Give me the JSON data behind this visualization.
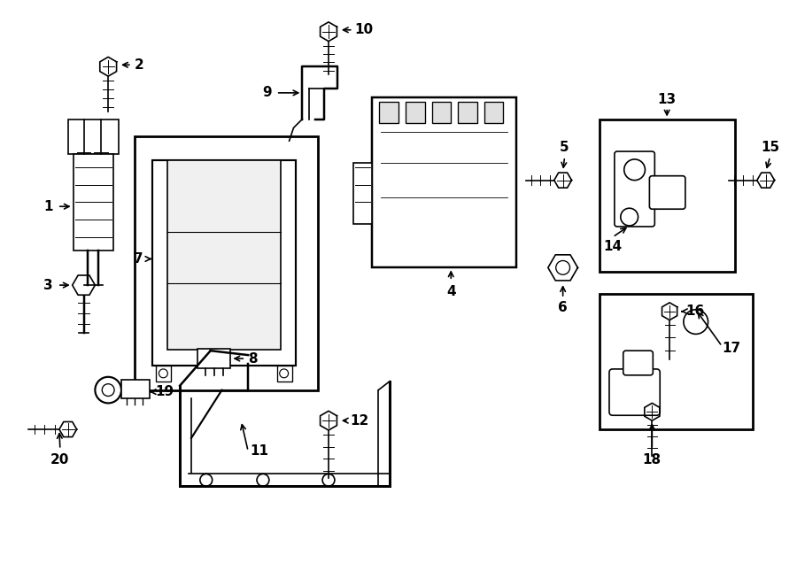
{
  "bg_color": "#ffffff",
  "line_color": "#000000",
  "fig_width": 9.0,
  "fig_height": 6.62,
  "dpi": 100
}
